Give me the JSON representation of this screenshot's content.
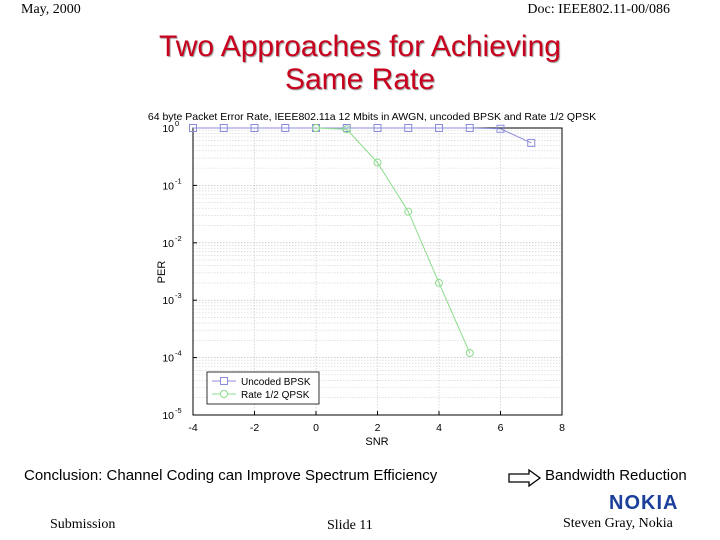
{
  "header": {
    "date": "May, 2000",
    "doc_id": "Doc: IEEE802.11-00/086"
  },
  "title": {
    "line1": "Two Approaches for Achieving",
    "line2": "Same Rate"
  },
  "chart_data": {
    "type": "line",
    "title": "64 byte Packet Error Rate, IEEE802.11a 12 Mbits in AWGN, uncoded BPSK and Rate 1/2 QPSK",
    "xlabel": "SNR",
    "ylabel": "PER",
    "xlim": [
      -4,
      8
    ],
    "ylim": [
      1e-05,
      1
    ],
    "yscale": "log",
    "x_ticks": [
      "-4",
      "-2",
      "0",
      "2",
      "4",
      "6",
      "8"
    ],
    "y_ticks": [
      {
        "value": 1,
        "base": "10",
        "exp": "0"
      },
      {
        "value": 0.1,
        "base": "10",
        "exp": "-1"
      },
      {
        "value": 0.01,
        "base": "10",
        "exp": "-2"
      },
      {
        "value": 0.001,
        "base": "10",
        "exp": "-3"
      },
      {
        "value": 0.0001,
        "base": "10",
        "exp": "-4"
      },
      {
        "value": 1e-05,
        "base": "10",
        "exp": "-5"
      }
    ],
    "grid": true,
    "legend": "bottom-left",
    "series": [
      {
        "name": "Uncoded BPSK",
        "color": "#8c8cdc",
        "marker": "square",
        "x": [
          -4,
          -3,
          -2,
          -1,
          0,
          1,
          2,
          3,
          4,
          5,
          6,
          7
        ],
        "y": [
          1,
          1,
          1,
          1,
          1,
          1,
          1,
          1,
          1,
          1,
          0.97,
          0.55
        ]
      },
      {
        "name": "Rate 1/2 QPSK",
        "color": "#8cdc8c",
        "marker": "circle",
        "x": [
          0,
          1,
          2,
          3,
          4,
          5
        ],
        "y": [
          1,
          0.95,
          0.25,
          0.035,
          0.002,
          0.00012
        ]
      }
    ]
  },
  "conclusion": {
    "text": "Conclusion: Channel Coding can Improve Spectrum Efficiency",
    "result": "Bandwidth Reduction"
  },
  "footer": {
    "submission": "Submission",
    "slide": "Slide 11",
    "author": "Steven Gray, Nokia"
  },
  "logo": {
    "text": "NOKIA"
  }
}
